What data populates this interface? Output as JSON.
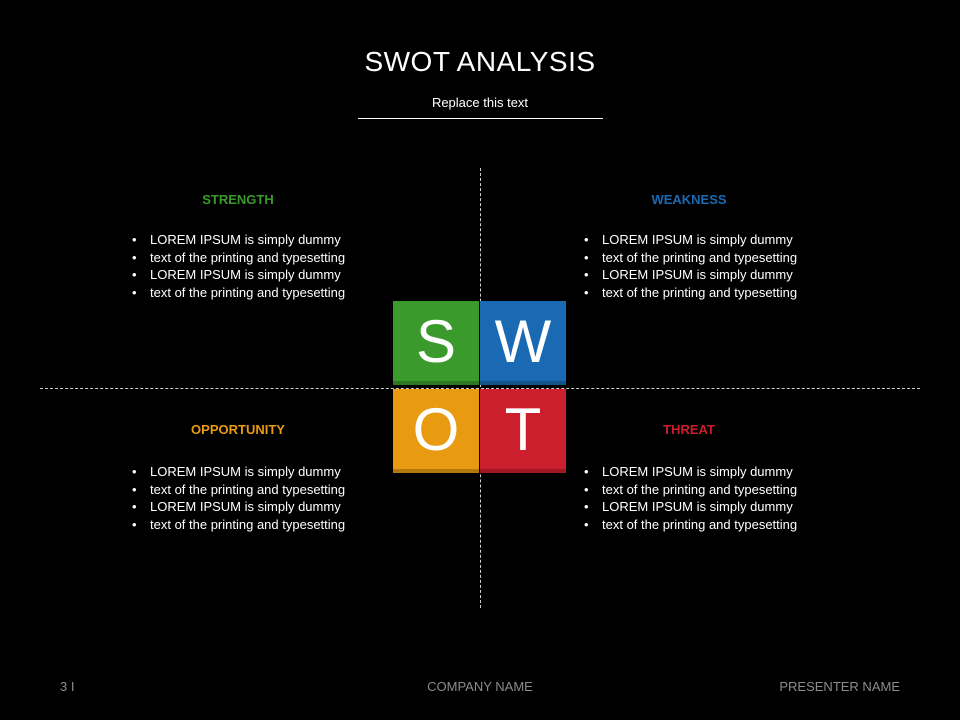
{
  "slide": {
    "title": "SWOT ANALYSIS",
    "subtitle": "Replace this text"
  },
  "colors": {
    "background": "#000000",
    "strength": "#3a9a2c",
    "weakness": "#1a6ab3",
    "opportunity": "#e89a10",
    "threat": "#cc1f2d",
    "footer_text": "#8c8c8c"
  },
  "quadrants": {
    "strength": {
      "heading": "STRENGTH",
      "letter": "S",
      "bullets": [
        "LOREM IPSUM is simply dummy",
        "text of the printing and typesetting",
        "LOREM IPSUM is simply dummy",
        "text of the printing and typesetting"
      ]
    },
    "weakness": {
      "heading": "WEAKNESS",
      "letter": "W",
      "bullets": [
        "LOREM IPSUM is simply dummy",
        "text of the printing and typesetting",
        "LOREM IPSUM is simply dummy",
        "text of the printing and typesetting"
      ]
    },
    "opportunity": {
      "heading": "OPPORTUNITY",
      "letter": "O",
      "bullets": [
        "LOREM IPSUM is simply dummy",
        "text of the printing and typesetting",
        "LOREM IPSUM is simply dummy",
        "text of the printing and typesetting"
      ]
    },
    "threat": {
      "heading": "THREAT",
      "letter": "T",
      "bullets": [
        "LOREM IPSUM is simply dummy",
        "text of the printing and typesetting",
        "LOREM IPSUM is simply dummy",
        "text of the printing and typesetting"
      ]
    }
  },
  "footer": {
    "page_number": "3 I",
    "company": "COMPANY NAME",
    "presenter": "PRESENTER NAME"
  }
}
